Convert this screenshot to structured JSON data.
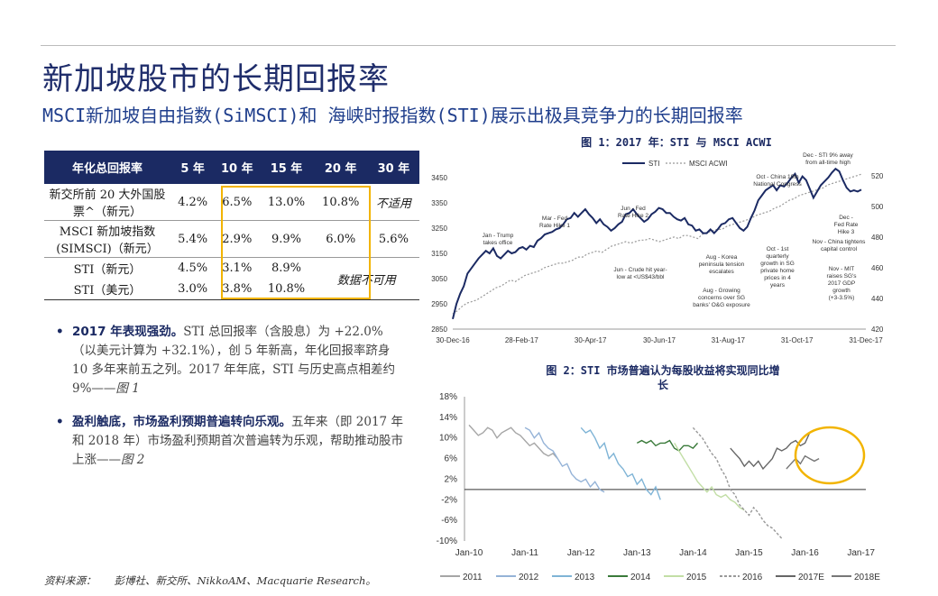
{
  "title": "新加坡股市的长期回报率",
  "subtitle": "MSCI新加坡自由指数(SiMSCI)和 海峡时报指数(STI)展示出极具竞争力的长期回报率",
  "table": {
    "headers": [
      "年化总回报率",
      "5 年",
      "10 年",
      "15 年",
      "20 年",
      "30 年"
    ],
    "rows": [
      {
        "label": "新交所前 20 大外国股票^（新元）",
        "values": [
          "4.2%",
          "6.5%",
          "13.0%",
          "10.8%",
          "不适用"
        ]
      },
      {
        "label": "MSCI 新加坡指数(SIMSCI)（新元）",
        "values": [
          "5.4%",
          "2.9%",
          "9.9%",
          "6.0%",
          "5.6%"
        ]
      },
      {
        "label": "STI（新元）",
        "values": [
          "4.5%",
          "3.1%",
          "8.9%"
        ]
      },
      {
        "label": "STI（美元）",
        "values": [
          "3.0%",
          "3.8%",
          "10.8%"
        ]
      }
    ],
    "na_note": "数据不可用"
  },
  "bullets": [
    {
      "bold": "2017 年表现强劲。",
      "text": "STI 总回报率（含股息）为 +22.0%（以美元计算为 +32.1%），创 5 年新高，年化回报率跻身 10 多年来前五之列。2017 年年底，STI 与历史高点相差约 9%——",
      "ref": "图 1"
    },
    {
      "bold": "盈利触底，市场盈利预期普遍转向乐观。",
      "text": "五年来（即 2017 年和 2018 年）市场盈利预期首次普遍转为乐观，帮助推动股市上涨——",
      "ref": "图 2"
    }
  ],
  "source": {
    "label": "资料来源：",
    "text": "彭博社、新交所、NikkoAM、Macquarie Research。"
  },
  "colors": {
    "navy": "#1b2a63",
    "highlight": "#f2b400"
  },
  "chart_data": [
    {
      "type": "line",
      "title": "图 1：2017 年：STI 与 MSCI ACWI",
      "series": [
        {
          "name": "STI"
        },
        {
          "name": "MSCI ACWI"
        }
      ],
      "x_ticks": [
        "30-Dec-16",
        "28-Feb-17",
        "30-Apr-17",
        "30-Jun-17",
        "31-Aug-17",
        "31-Oct-17",
        "31-Dec-17"
      ],
      "y_left_ticks": [
        2850,
        2950,
        3050,
        3150,
        3250,
        3350,
        3450
      ],
      "y_right_ticks": [
        420,
        440,
        460,
        480,
        500,
        520
      ],
      "ylim_left": [
        2850,
        3500
      ],
      "ylim_right": [
        420,
        527
      ],
      "sti_values": [
        2890,
        2950,
        2990,
        3020,
        3070,
        3090,
        3110,
        3130,
        3145,
        3160,
        3150,
        3170,
        3140,
        3130,
        3145,
        3160,
        3150,
        3155,
        3170,
        3175,
        3165,
        3180,
        3175,
        3200,
        3210,
        3225,
        3230,
        3235,
        3245,
        3250,
        3265,
        3285,
        3290,
        3310,
        3295,
        3310,
        3325,
        3305,
        3290,
        3270,
        3285,
        3265,
        3255,
        3240,
        3250,
        3265,
        3275,
        3305,
        3310,
        3325,
        3305,
        3290,
        3275,
        3285,
        3305,
        3315,
        3330,
        3325,
        3310,
        3310,
        3295,
        3285,
        3280,
        3290,
        3265,
        3260,
        3240,
        3245,
        3230,
        3230,
        3245,
        3230,
        3245,
        3265,
        3270,
        3285,
        3290,
        3270,
        3250,
        3240,
        3255,
        3290,
        3320,
        3360,
        3380,
        3400,
        3410,
        3420,
        3400,
        3420,
        3415,
        3430,
        3450,
        3465,
        3430,
        3455,
        3440,
        3405,
        3370,
        3395,
        3420,
        3435,
        3450,
        3470,
        3485,
        3475,
        3440,
        3410,
        3395,
        3400,
        3395,
        3402
      ],
      "acwi_values": [
        430,
        432,
        435,
        437,
        438,
        439,
        441,
        443,
        445,
        447,
        448,
        450,
        452,
        451,
        453,
        455,
        456,
        457,
        458,
        460,
        461,
        462,
        463,
        463,
        464,
        465,
        467,
        467,
        469,
        470,
        471,
        470,
        472,
        474,
        475,
        476,
        477,
        476,
        477,
        478,
        478,
        479,
        478,
        477,
        478,
        479,
        480,
        479,
        481,
        481,
        480,
        479,
        482,
        483,
        484,
        485,
        485,
        487,
        488,
        489,
        490,
        491,
        492,
        494,
        495,
        496,
        497,
        499,
        500,
        502,
        504,
        505,
        507,
        508,
        509,
        510,
        511,
        512,
        514,
        515,
        516,
        517,
        518,
        519,
        520,
        521
      ],
      "annotations": [
        {
          "text": [
            "Jan - Trump",
            "takes office"
          ]
        },
        {
          "text": [
            "Mar - Fed",
            "Rate Hike 1"
          ]
        },
        {
          "text": [
            "Jun - Fed",
            "Rate Hike 2"
          ]
        },
        {
          "text": [
            "Jun - Crude hit year-",
            "low at <US$43/bbl"
          ]
        },
        {
          "text": [
            "Aug - Korea",
            "peninsula tension",
            "escalates"
          ]
        },
        {
          "text": [
            "Aug - Growing",
            "concerns over SG",
            "banks' O&G exposure"
          ]
        },
        {
          "text": [
            "Oct - China 19th",
            "National Congress"
          ]
        },
        {
          "text": [
            "Oct - 1st",
            "quarterly",
            "growth in SG",
            "private home",
            "prices in 4",
            "years"
          ]
        },
        {
          "text": [
            "Dec - STI 9% away",
            "from all-time high"
          ]
        },
        {
          "text": [
            "Dec -",
            "Fed Rate",
            "Hike 3"
          ]
        },
        {
          "text": [
            "Nov - China tightens",
            "capital control"
          ]
        },
        {
          "text": [
            "Nov - MIT",
            "raises SG's",
            "2017 GDP",
            "growth",
            "(+3-3.5%)"
          ]
        }
      ]
    },
    {
      "type": "line",
      "title": "图 2：STI 市场普遍认为每股收益将实现同比增长",
      "x_ticks": [
        "Jan-10",
        "Jan-11",
        "Jan-12",
        "Jan-13",
        "Jan-14",
        "Jan-15",
        "Jan-16",
        "Jan-17"
      ],
      "y_ticks": [
        "18%",
        "14%",
        "10%",
        "6%",
        "2%",
        "-2%",
        "-6%",
        "-10%"
      ],
      "ylim": [
        -10,
        18
      ],
      "series": [
        {
          "name": "2011",
          "color": "#a6a6a6",
          "dash": "",
          "start": 0,
          "values": [
            12.5,
            11.5,
            10.5,
            11,
            12,
            11.5,
            10,
            11,
            11.5,
            12,
            11,
            10.5,
            9.5,
            8.5,
            9,
            8,
            7,
            6.5,
            7,
            6
          ]
        },
        {
          "name": "2012",
          "color": "#95b3d7",
          "dash": "",
          "start": 12,
          "values": [
            12,
            11.5,
            10,
            11,
            9,
            8,
            7.5,
            6,
            4.5,
            5,
            3,
            2,
            1.5,
            2,
            0.5,
            1.5,
            0,
            -0.5
          ]
        },
        {
          "name": "2013",
          "color": "#7fb4d6",
          "dash": "",
          "start": 24,
          "values": [
            12,
            11,
            11.5,
            10,
            8,
            9,
            6,
            7,
            5,
            4,
            2.5,
            3,
            1,
            2,
            0,
            -1,
            0.5,
            -2
          ]
        },
        {
          "name": "2014",
          "color": "#3a7a3a",
          "dash": "",
          "start": 36,
          "values": [
            9,
            9.5,
            9,
            9.5,
            8.5,
            9,
            9,
            9.5,
            8,
            7.5,
            8.5,
            8.5,
            8,
            9
          ]
        },
        {
          "name": "2015",
          "color": "#c2dea6",
          "dash": "",
          "start": 44,
          "values": [
            9,
            7.5,
            6,
            4.5,
            3,
            1.5,
            0.5,
            -0.5,
            0.5,
            -1,
            -1.5,
            -1,
            -2,
            -2.5,
            -3.5,
            -4
          ]
        },
        {
          "name": "2016",
          "color": "#999999",
          "dash": "3,2",
          "start": 48,
          "values": [
            12,
            11,
            10,
            8.5,
            7,
            6,
            4,
            2.5,
            0,
            -1,
            -3,
            -4,
            -5,
            -3.5,
            -4.5,
            -6,
            -7,
            -7.5,
            -8.5,
            -9.5
          ]
        },
        {
          "name": "2017E",
          "color": "#666666",
          "dash": "",
          "start": 56,
          "values": [
            8,
            7,
            6,
            4.5,
            5.5,
            4.5,
            5.5,
            4,
            5,
            6,
            8,
            7.5,
            8,
            9,
            9.5,
            8.5,
            9,
            11
          ]
        },
        {
          "name": "2018E",
          "color": "#777777",
          "dash": "",
          "start": 68,
          "values": [
            4,
            5,
            6,
            5,
            6.5,
            6,
            5.5,
            6
          ]
        }
      ]
    }
  ]
}
